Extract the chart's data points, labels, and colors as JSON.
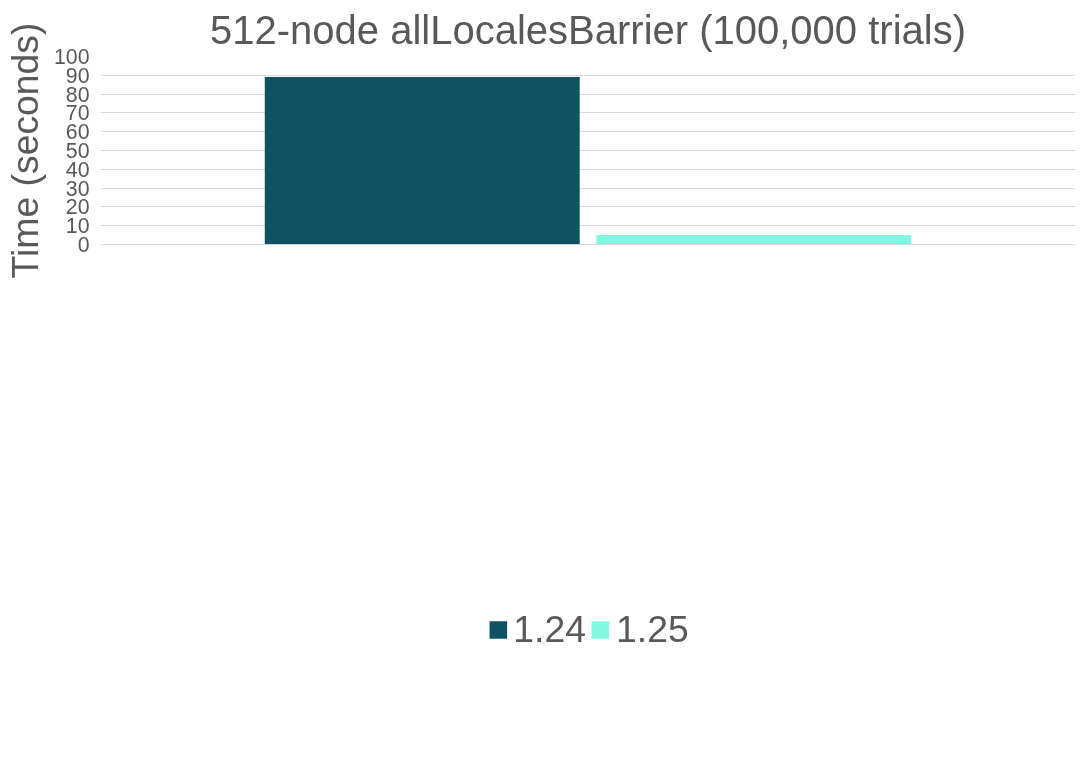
{
  "chart_data": {
    "type": "bar",
    "title": "512-node allLocalesBarrier (100,000 trials)",
    "ylabel": "Time (seconds)",
    "categories": [
      null
    ],
    "series": [
      {
        "name": "1.24",
        "color": "#0f5263",
        "values": [
          89.1
        ]
      },
      {
        "name": "1.25",
        "color": "#7ff9e2",
        "values": [
          5.0
        ]
      }
    ],
    "ylim": [
      0,
      100
    ],
    "yticks": [
      0,
      10,
      20,
      30,
      40,
      50,
      60,
      70,
      80,
      90,
      100
    ],
    "grid": "y",
    "legend": "bottom",
    "tick_labels": "y"
  }
}
